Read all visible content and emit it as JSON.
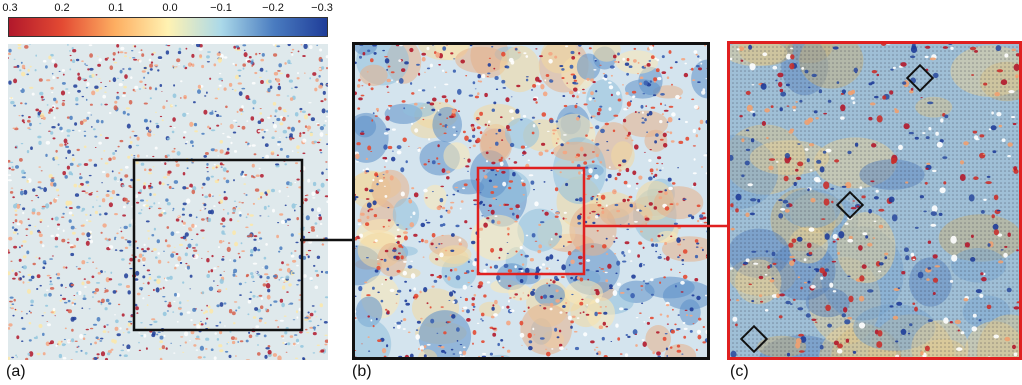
{
  "colorbar": {
    "tick_labels": [
      "0.3",
      "0.2",
      "0.1",
      "0.0",
      "−0.1",
      "−0.2",
      "−0.3"
    ],
    "stops": [
      "#b2182b",
      "#e34a33",
      "#fdae61",
      "#fff2b2",
      "#abd9e9",
      "#4a7cc0",
      "#1f3d99"
    ]
  },
  "panels": {
    "a": {
      "label": "(a)"
    },
    "b": {
      "label": "(b)"
    },
    "c": {
      "label": "(c)"
    }
  },
  "zoom_box_colors": {
    "a_to_b": "#111111",
    "b_to_c": "#e02020"
  }
}
